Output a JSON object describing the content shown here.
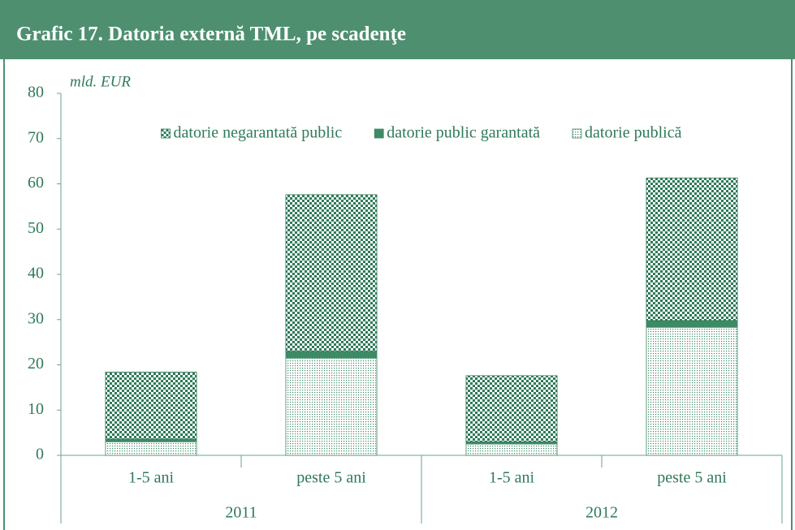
{
  "chart_data": {
    "type": "stacked_bar",
    "title": "Grafic 17. Datoria externă TML, pe scadenţe",
    "ylabel": "mld. EUR",
    "groups": [
      {
        "name": "2011",
        "categories": [
          "1-5 ani",
          "peste 5 ani"
        ]
      },
      {
        "name": "2012",
        "categories": [
          "1-5 ani",
          "peste 5 ani"
        ]
      }
    ],
    "series": [
      {
        "name": "datorie publică",
        "color": "#3d8a66",
        "pattern": "dots",
        "values": [
          3.0,
          21.5,
          2.5,
          28.3
        ]
      },
      {
        "name": "datorie public garantată",
        "color": "#3d8a66",
        "pattern": "solid",
        "values": [
          0.6,
          1.5,
          0.5,
          1.5
        ]
      },
      {
        "name": "datorie negarantată public",
        "color": "#2f7a58",
        "pattern": "checker",
        "values": [
          14.8,
          34.6,
          14.6,
          31.5
        ]
      }
    ],
    "legend_order": [
      2,
      1,
      0
    ],
    "ylim": [
      0,
      80
    ],
    "yticks": [
      0,
      10,
      20,
      30,
      40,
      50,
      60,
      70,
      80
    ]
  }
}
